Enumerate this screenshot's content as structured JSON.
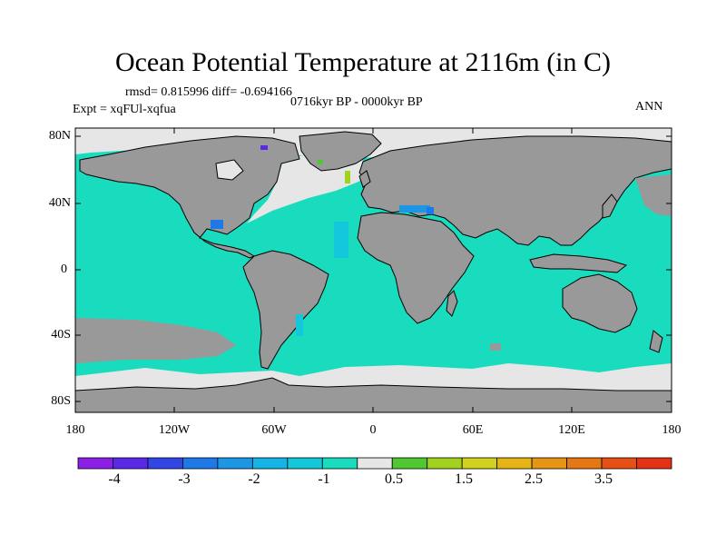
{
  "header": {
    "title": "Ocean Potential Temperature at 2116m (in C)",
    "stats": "rmsd= 0.815996 diff= -0.694166",
    "period": "0716kyr BP - 0000kyr BP",
    "experiment": "Expt = xqFUl-xqfua",
    "season": "ANN"
  },
  "axes": {
    "y_ticks": [
      "80N",
      "40N",
      "0",
      "40S",
      "80S"
    ],
    "x_ticks": [
      "180",
      "120W",
      "60W",
      "0",
      "60E",
      "120E",
      "180"
    ]
  },
  "colors": {
    "land": "#999999",
    "ocean_dominant": "#19dcbe",
    "near_zero": "#e6e6e6"
  },
  "colorbar": {
    "bins": [
      {
        "color": "#8c1ee6"
      },
      {
        "color": "#5a28e6"
      },
      {
        "color": "#3246e6"
      },
      {
        "color": "#1e78e6"
      },
      {
        "color": "#1e96e6"
      },
      {
        "color": "#14b4e6"
      },
      {
        "color": "#14c8dc"
      },
      {
        "color": "#19dcbe"
      },
      {
        "color": "#e6e6e6"
      },
      {
        "color": "#50c832"
      },
      {
        "color": "#a0d21e"
      },
      {
        "color": "#d2d21e"
      },
      {
        "color": "#e6b414"
      },
      {
        "color": "#e69614"
      },
      {
        "color": "#e67814"
      },
      {
        "color": "#e65014"
      },
      {
        "color": "#e63214"
      }
    ],
    "labels": [
      "-4",
      "-3",
      "-2",
      "-1",
      "0.5",
      "1.5",
      "2.5",
      "3.5"
    ]
  }
}
